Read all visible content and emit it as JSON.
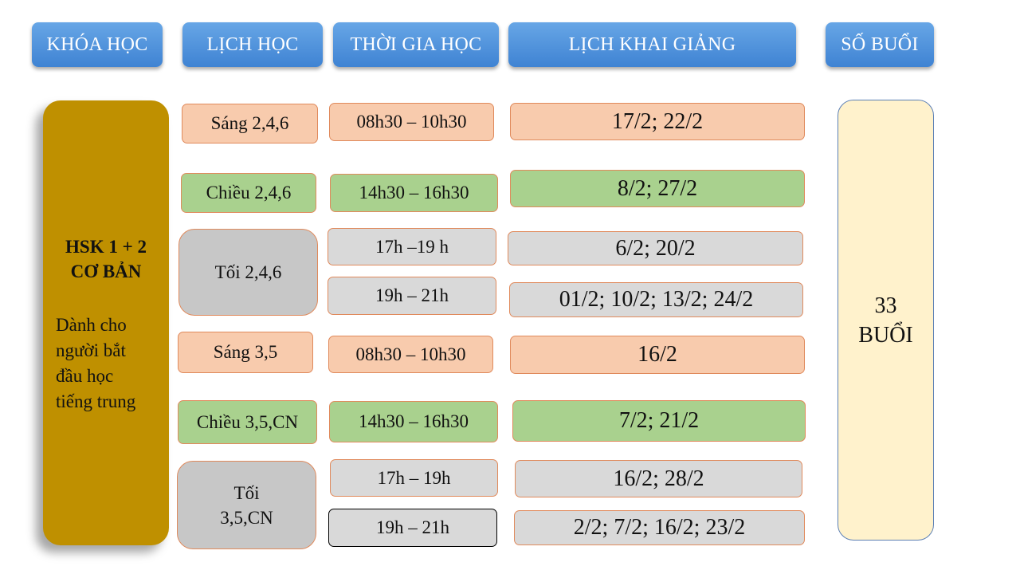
{
  "headers": {
    "course": "KHÓA HỌC",
    "schedule": "LỊCH HỌC",
    "time": "THỜI GIA HỌC",
    "opening": "LỊCH KHAI GIẢNG",
    "sessions": "SỐ BUỔI"
  },
  "course": {
    "title_line1": "HSK 1 + 2",
    "title_line2": "CƠ BẢN",
    "desc_line1": "Dành cho",
    "desc_line2": "người bắt",
    "desc_line3": "đầu học",
    "desc_line4": "tiếng trung"
  },
  "schedules": [
    "Sáng 2,4,6",
    "Chiều 2,4,6",
    "Tối 2,4,6",
    "Sáng 3,5",
    "Chiều 3,5,CN",
    "Tối",
    "3,5,CN"
  ],
  "times": [
    "08h30 – 10h30",
    "14h30 – 16h30",
    "17h –19 h",
    "19h – 21h",
    "08h30 – 10h30",
    "14h30 – 16h30",
    "17h – 19h",
    "19h – 21h"
  ],
  "openings": [
    "17/2; 22/2",
    "8/2; 27/2",
    "6/2; 20/2",
    "01/2; 10/2; 13/2; 24/2",
    "16/2",
    "7/2; 21/2",
    "16/2; 28/2",
    "2/2; 7/2; 16/2; 23/2"
  ],
  "sessions": {
    "count": "33",
    "unit": "BUỔI"
  },
  "colors": {
    "header_blue": "#4a8fdc",
    "course_gold": "#bf9000",
    "morning_peach": "#f8cbad",
    "afternoon_green": "#a9d18e",
    "evening_grey": "#d9d9d9",
    "sessions_cream": "#fff2cc"
  }
}
